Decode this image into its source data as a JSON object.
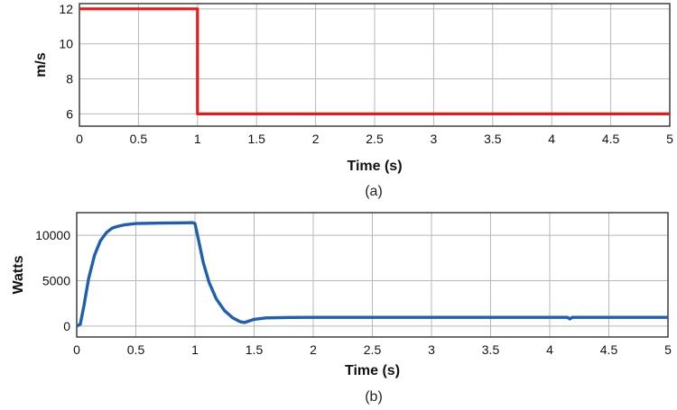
{
  "chart_data": [
    {
      "type": "line",
      "panel_label": "(a)",
      "xlabel": "Time (s)",
      "ylabel": "m/s",
      "xlim": [
        0,
        5
      ],
      "ylim": [
        5.3,
        12.3
      ],
      "xticks": [
        "0",
        "0.5",
        "1",
        "1.5",
        "2",
        "2.5",
        "3",
        "3.5",
        "4",
        "4.5",
        "5"
      ],
      "yticks": [
        "6",
        "8",
        "10",
        "12"
      ],
      "grid": true,
      "series": [
        {
          "color": "#e31b1b",
          "x": [
            0,
            1,
            1,
            5
          ],
          "y": [
            12,
            12,
            6,
            6
          ]
        }
      ]
    },
    {
      "type": "line",
      "panel_label": "(b)",
      "xlabel": "Time (s)",
      "ylabel": "Watts",
      "xlim": [
        0,
        5
      ],
      "ylim": [
        -1200,
        12500
      ],
      "xticks": [
        "0",
        "0.5",
        "1",
        "1.5",
        "2",
        "2.5",
        "3",
        "3.5",
        "4",
        "4.5",
        "5"
      ],
      "yticks": [
        "0",
        "5000",
        "10000"
      ],
      "grid": true,
      "series": [
        {
          "color": "#1f5fb0",
          "x": [
            0,
            0.03,
            0.06,
            0.1,
            0.15,
            0.2,
            0.25,
            0.3,
            0.35,
            0.4,
            0.5,
            0.6,
            0.7,
            0.8,
            0.9,
            0.98,
            1.0,
            1.03,
            1.07,
            1.12,
            1.18,
            1.25,
            1.32,
            1.38,
            1.42,
            1.5,
            1.6,
            1.8,
            2.0,
            3.0,
            4.0,
            4.15,
            4.17,
            4.19,
            4.3,
            5.0
          ],
          "y": [
            0,
            200,
            2200,
            5200,
            7800,
            9400,
            10300,
            10800,
            11000,
            11150,
            11300,
            11330,
            11350,
            11370,
            11380,
            11400,
            11300,
            9500,
            7000,
            4800,
            3000,
            1700,
            900,
            500,
            400,
            750,
            900,
            950,
            960,
            960,
            960,
            960,
            800,
            960,
            960,
            960
          ]
        }
      ]
    }
  ]
}
